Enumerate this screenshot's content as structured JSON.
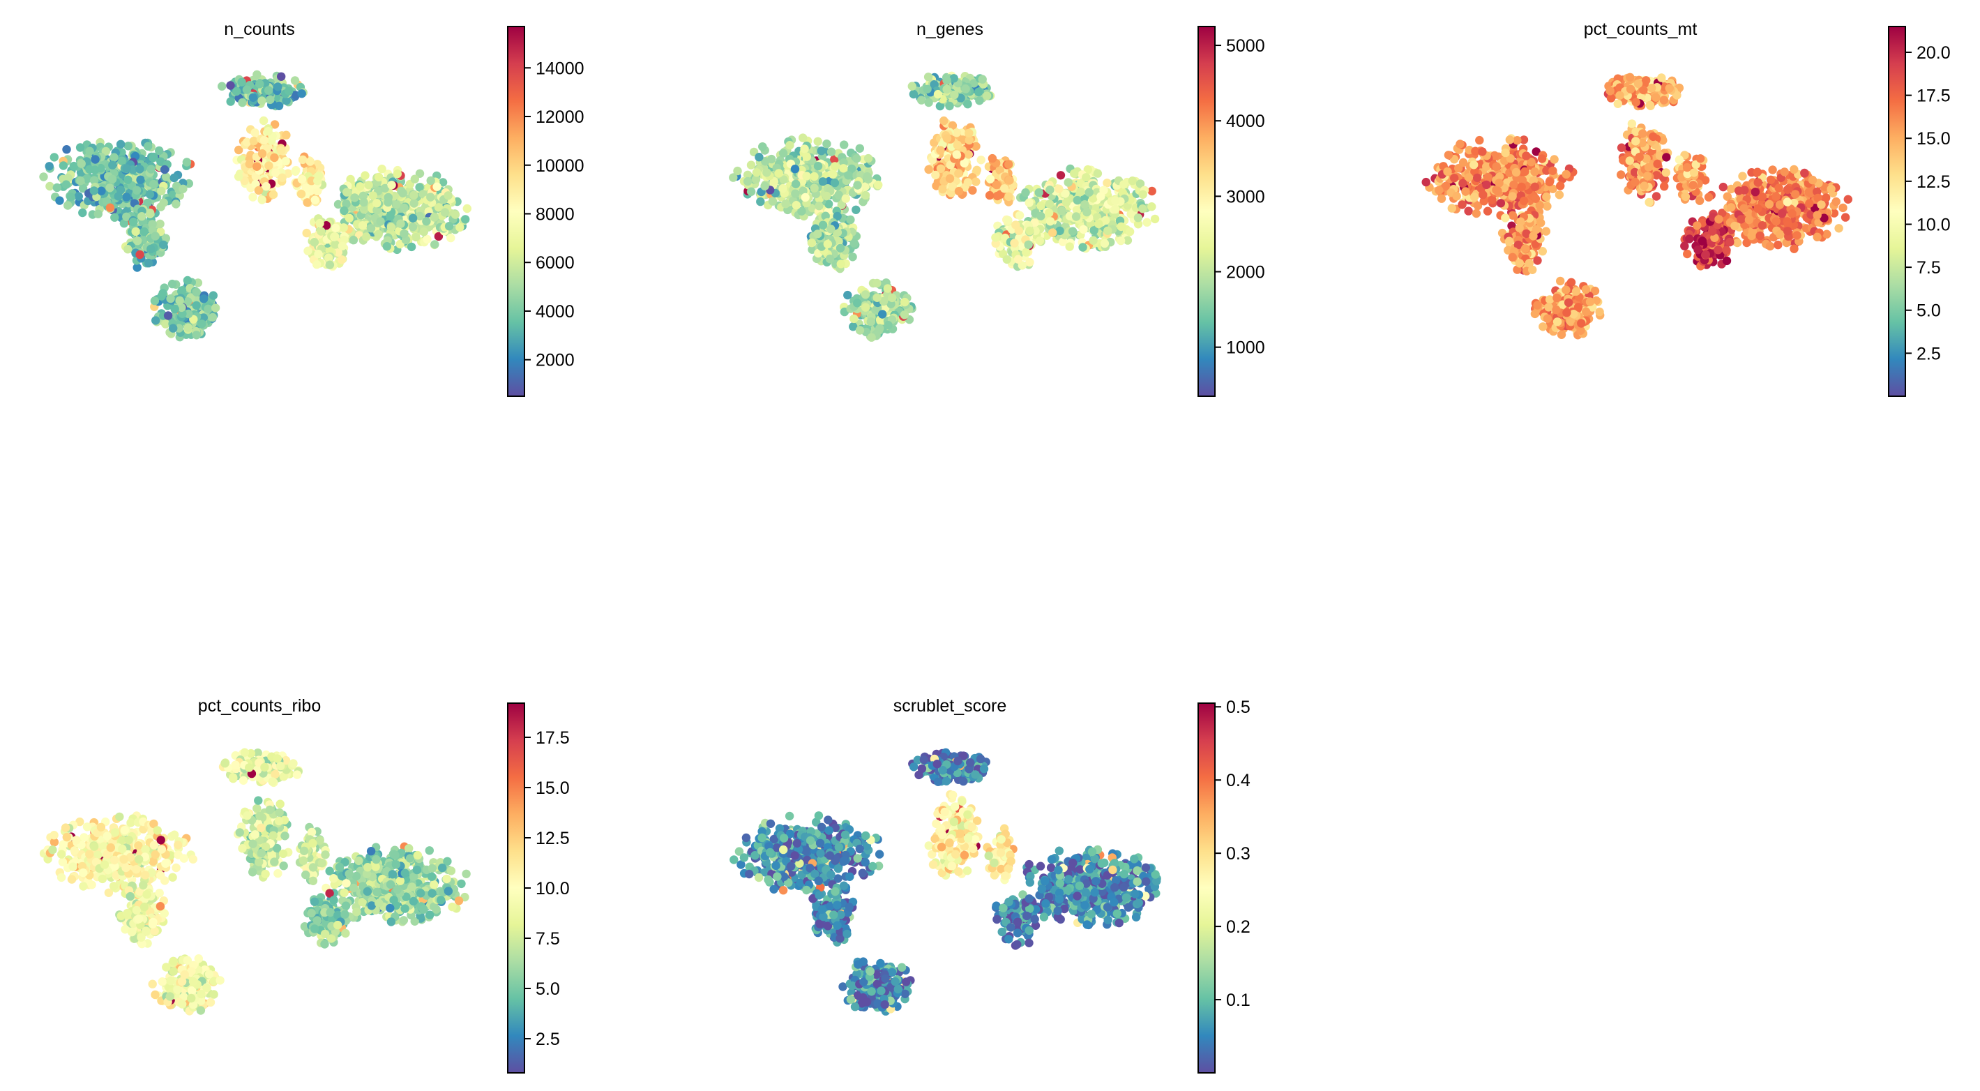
{
  "figure": {
    "colormap": "Spectral_r",
    "layout": "2 rows x 3 columns, 5 panels"
  },
  "colormap_stops": [
    "#5e4fa2",
    "#3288bd",
    "#66c2a5",
    "#abdda4",
    "#e6f598",
    "#ffffbf",
    "#fee08b",
    "#fdae61",
    "#f46d43",
    "#d53e4f",
    "#9e0142"
  ],
  "chart_data": [
    {
      "type": "scatter",
      "title": "n_counts",
      "color_range": [
        500,
        15700
      ],
      "colorbar_ticks": [
        2000,
        4000,
        6000,
        8000,
        10000,
        12000,
        14000
      ],
      "colorbar_tick_labels": [
        "2000",
        "4000",
        "6000",
        "8000",
        "10000",
        "12000",
        "14000"
      ],
      "cluster_levels": {
        "left": 0.22,
        "bottom": 0.24,
        "top": 0.2,
        "center": 0.55,
        "right": 0.33,
        "lower_right": 0.4
      }
    },
    {
      "type": "scatter",
      "title": "n_genes",
      "color_range": [
        350,
        5250
      ],
      "colorbar_ticks": [
        1000,
        2000,
        3000,
        4000,
        5000
      ],
      "colorbar_tick_labels": [
        "1000",
        "2000",
        "3000",
        "4000",
        "5000"
      ],
      "cluster_levels": {
        "left": 0.33,
        "bottom": 0.3,
        "top": 0.28,
        "center": 0.62,
        "right": 0.38,
        "lower_right": 0.45
      }
    },
    {
      "type": "scatter",
      "title": "pct_counts_mt",
      "color_range": [
        0,
        21.5
      ],
      "colorbar_ticks": [
        2.5,
        5.0,
        7.5,
        10.0,
        12.5,
        15.0,
        17.5,
        20.0
      ],
      "colorbar_tick_labels": [
        "2.5",
        "5.0",
        "7.5",
        "10.0",
        "12.5",
        "15.0",
        "17.5",
        "20.0"
      ],
      "cluster_levels": {
        "left": 0.75,
        "bottom": 0.72,
        "top": 0.68,
        "center": 0.72,
        "right": 0.78,
        "lower_right": 0.88
      }
    },
    {
      "type": "scatter",
      "title": "pct_counts_ribo",
      "color_range": [
        0.8,
        19.2
      ],
      "colorbar_ticks": [
        2.5,
        5.0,
        7.5,
        10.0,
        12.5,
        15.0,
        17.5
      ],
      "colorbar_tick_labels": [
        "2.5",
        "5.0",
        "7.5",
        "10.0",
        "12.5",
        "15.0",
        "17.5"
      ],
      "cluster_levels": {
        "left": 0.5,
        "bottom": 0.45,
        "top": 0.42,
        "center": 0.35,
        "right": 0.28,
        "lower_right": 0.25
      }
    },
    {
      "type": "scatter",
      "title": "scrublet_score",
      "color_range": [
        0.0,
        0.505
      ],
      "colorbar_ticks": [
        0.1,
        0.2,
        0.3,
        0.4,
        0.5
      ],
      "colorbar_tick_labels": [
        "0.1",
        "0.2",
        "0.3",
        "0.4",
        "0.5"
      ],
      "cluster_levels": {
        "left": 0.12,
        "bottom": 0.1,
        "top": 0.07,
        "center": 0.55,
        "right": 0.1,
        "lower_right": 0.08
      }
    }
  ]
}
